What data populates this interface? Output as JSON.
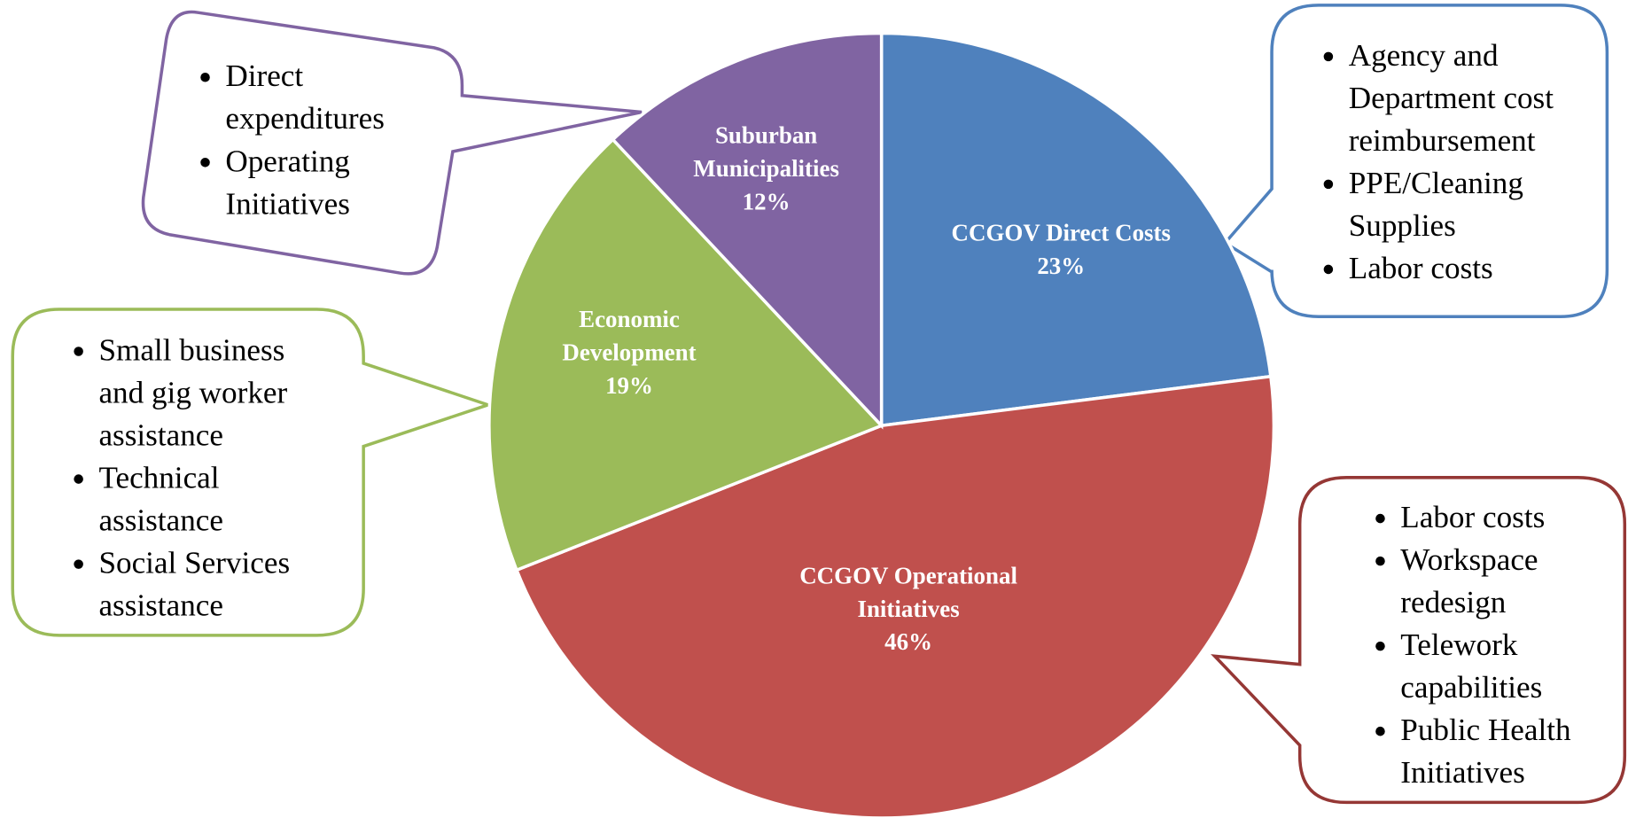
{
  "chart_data": {
    "type": "pie",
    "categories": [
      "CCGOV Direct Costs",
      "CCGOV Operational Initiatives",
      "Economic Development",
      "Suburban Municipalities"
    ],
    "values": [
      23,
      46,
      19,
      12
    ],
    "value_labels": [
      "23%",
      "46%",
      "19%",
      "12%"
    ],
    "colors": [
      "#4f81bd",
      "#c0504d",
      "#9bbb59",
      "#8064a2"
    ],
    "annotations": [
      {
        "items": [
          "Agency and Department cost reimbursement",
          "PPE/Cleaning Supplies",
          "Labor costs"
        ]
      },
      {
        "items": [
          "Labor costs",
          "Workspace redesign",
          "Telework capabilities",
          "Public Health Initiatives"
        ]
      },
      {
        "items": [
          "Small business and gig worker assistance",
          "Technical assistance",
          "Social Services assistance"
        ]
      },
      {
        "items": [
          "Direct expenditures",
          "Operating Initiatives"
        ]
      }
    ]
  }
}
